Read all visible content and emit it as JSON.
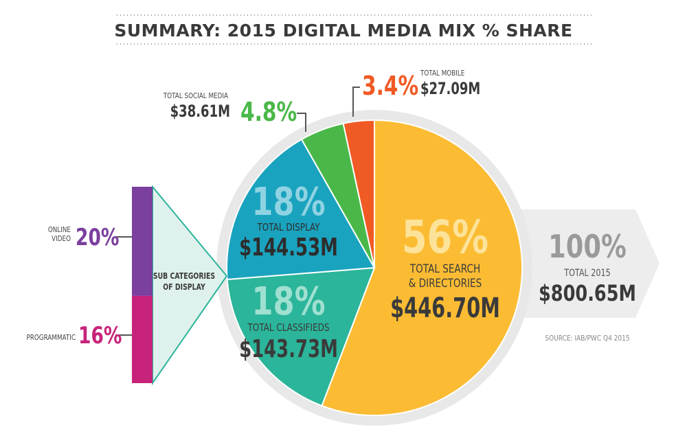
{
  "title": "SUMMARY: 2015 DIGITAL MEDIA MIX % SHARE",
  "source": "SOURCE: IAB/PWC Q4 2015",
  "total": {
    "percent": "100%",
    "label": "TOTAL 2015",
    "amount": "$800.65M"
  },
  "subcategories": {
    "label_line1": "SUB CATEGORIES",
    "label_line2": "OF DISPLAY",
    "items": [
      {
        "name_line1": "ONLINE",
        "name_line2": "VIDEO",
        "percent": "20%",
        "value": 20,
        "color": "#7b3f9e"
      },
      {
        "name_line1": "PROGRAMMATIC",
        "name_line2": "",
        "percent": "16%",
        "value": 16,
        "color": "#c8237a"
      }
    ]
  },
  "colors": {
    "search": "#fbbc34",
    "classifieds": "#2bb59a",
    "display": "#1aa3bf",
    "social": "#4ab848",
    "mobile": "#f05a24",
    "ring": "#e8e8e8",
    "text_dark": "#3a3a3a",
    "arrow": "#ededed"
  },
  "chart_data": {
    "type": "pie",
    "title": "SUMMARY: 2015 DIGITAL MEDIA MIX % SHARE",
    "unit": "$M",
    "slices": [
      {
        "name": "TOTAL SEARCH & DIRECTORIES",
        "name_line1": "TOTAL SEARCH",
        "name_line2": "& DIRECTORIES",
        "percent": "56%",
        "amount": "$446.70M",
        "value": 446.7,
        "color": "#fbbc34"
      },
      {
        "name": "TOTAL CLASSIFIEDS",
        "percent": "18%",
        "amount": "$143.73M",
        "value": 143.73,
        "color": "#2bb59a"
      },
      {
        "name": "TOTAL DISPLAY",
        "percent": "18%",
        "amount": "$144.53M",
        "value": 144.53,
        "color": "#1aa3bf"
      },
      {
        "name": "TOTAL SOCIAL MEDIA",
        "percent": "4.8%",
        "amount": "$38.61M",
        "value": 38.61,
        "color": "#4ab848"
      },
      {
        "name": "TOTAL MOBILE",
        "percent": "3.4%",
        "amount": "$27.09M",
        "value": 27.09,
        "color": "#f05a24"
      }
    ]
  }
}
